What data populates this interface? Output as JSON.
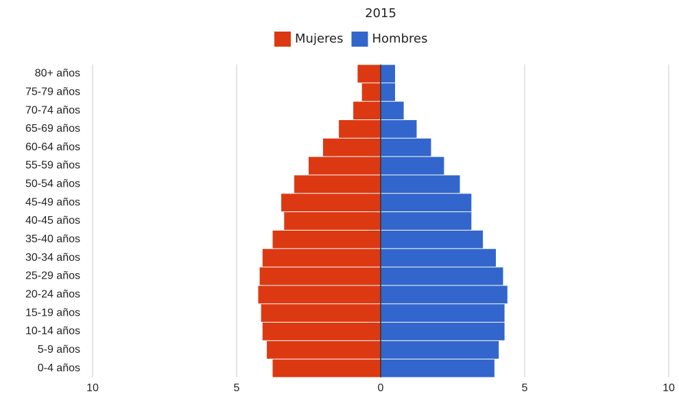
{
  "chart_data": {
    "type": "pyramid",
    "title": "2015",
    "categories": [
      "80+ años",
      "75-79 años",
      "70-74 años",
      "65-69 años",
      "60-64 años",
      "55-59 años",
      "50-54 años",
      "45-49 años",
      "40-45 años",
      "35-40 años",
      "30-34 años",
      "25-29 años",
      "20-24 años",
      "15-19 años",
      "10-14 años",
      "5-9 años",
      "0-4 años"
    ],
    "series": [
      {
        "name": "Mujeres",
        "color": "#dc3912",
        "values": [
          -0.8,
          -0.65,
          -0.95,
          -1.45,
          -2.0,
          -2.5,
          -3.0,
          -3.45,
          -3.35,
          -3.75,
          -4.1,
          -4.2,
          -4.25,
          -4.15,
          -4.1,
          -3.95,
          -3.75
        ]
      },
      {
        "name": "Hombres",
        "color": "#3366cc",
        "values": [
          0.5,
          0.5,
          0.8,
          1.25,
          1.75,
          2.2,
          2.75,
          3.15,
          3.15,
          3.55,
          4.0,
          4.25,
          4.4,
          4.3,
          4.3,
          4.1,
          3.95
        ]
      }
    ],
    "xlim": [
      -10,
      10
    ],
    "xticks": [
      {
        "value": -10,
        "label": "10"
      },
      {
        "value": -5,
        "label": "5"
      },
      0,
      5,
      10
    ],
    "grid": true
  }
}
